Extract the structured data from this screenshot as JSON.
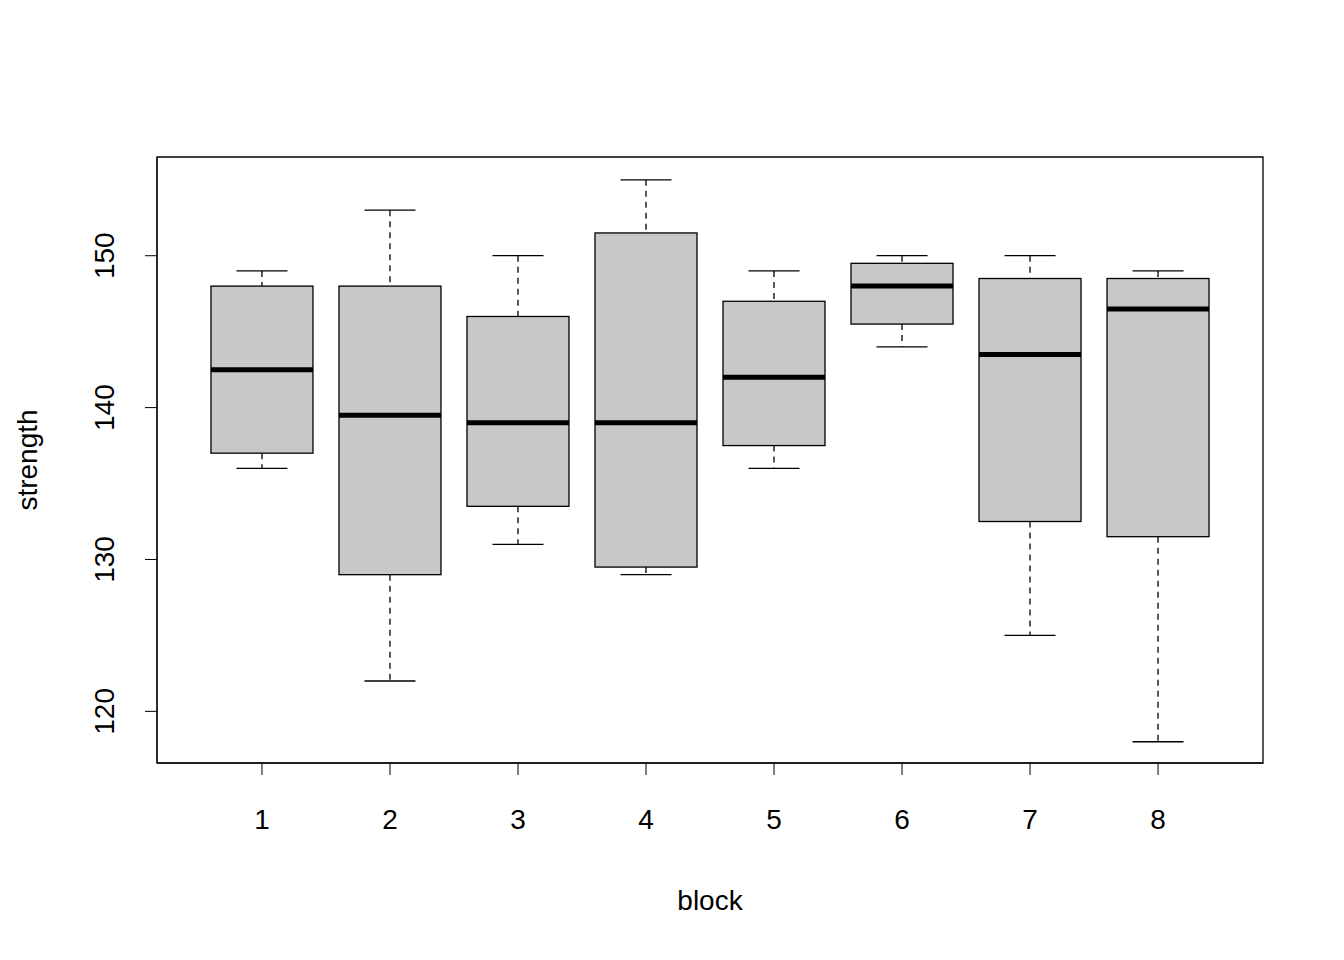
{
  "chart_data": {
    "type": "box",
    "x_label": "block",
    "y_label": "strength",
    "x": [
      1,
      2,
      3,
      4,
      5,
      6,
      7,
      8
    ],
    "xlim": [
      0.18,
      8.82
    ],
    "xticks": [
      1,
      2,
      3,
      4,
      5,
      6,
      7,
      8
    ],
    "ylim": [
      116.6,
      156.5
    ],
    "yticks": [
      120,
      130,
      140,
      150
    ],
    "whisker_low": [
      136,
      122,
      131,
      129,
      136,
      144,
      125,
      118
    ],
    "q1": [
      137,
      129,
      133.5,
      129.5,
      137.5,
      145.5,
      132.5,
      131.5
    ],
    "median": [
      142.5,
      139.5,
      139,
      139,
      142,
      148,
      143.5,
      146.5
    ],
    "q3": [
      148,
      148,
      146,
      151.5,
      147,
      149.5,
      148.5,
      148.5
    ],
    "whisker_high": [
      149,
      153,
      150,
      155,
      149,
      150,
      150,
      149
    ],
    "color": "#c8c8c8"
  }
}
